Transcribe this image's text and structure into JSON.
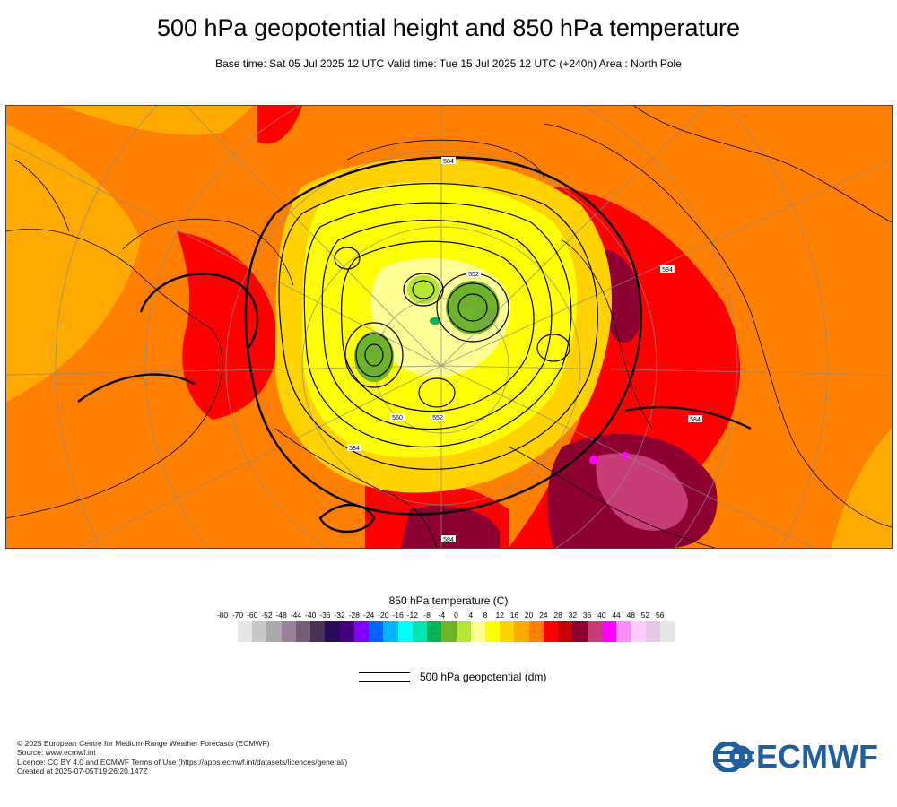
{
  "header": {
    "title": "500 hPa geopotential height and 850 hPa temperature",
    "subtitle": "Base time: Sat 05 Jul 2025 12 UTC Valid time: Tue 15 Jul 2025 12 UTC (+240h) Area : North Pole"
  },
  "map": {
    "contour_labels": [
      "584",
      "584",
      "584",
      "584",
      "584",
      "552",
      "552",
      "560"
    ],
    "colors": {
      "land_outline": "#000000",
      "grid": "#8a8a8a"
    }
  },
  "temperature_legend": {
    "title": "850 hPa temperature (C)",
    "ticks": [
      "-80",
      "-70",
      "-60",
      "-52",
      "-48",
      "-44",
      "-40",
      "-36",
      "-32",
      "-28",
      "-24",
      "-20",
      "-16",
      "-12",
      "-8",
      "-4",
      "0",
      "4",
      "8",
      "12",
      "16",
      "20",
      "24",
      "28",
      "32",
      "36",
      "40",
      "44",
      "48",
      "52",
      "56"
    ],
    "colors": [
      "#e6e6e6",
      "#c8c8c8",
      "#aaaaaa",
      "#9c7f9c",
      "#765f76",
      "#4a3155",
      "#2a0a5a",
      "#46007d",
      "#8200ff",
      "#0064ff",
      "#00b4ff",
      "#00ffff",
      "#00e6b4",
      "#00b45a",
      "#6eb428",
      "#b4e632",
      "#ffff96",
      "#ffff00",
      "#ffd200",
      "#ffaa00",
      "#ff8000",
      "#ff0000",
      "#c80000",
      "#8c0032",
      "#c83c78",
      "#ff00ff",
      "#ff8cff",
      "#ffc8ff",
      "#e6c8e6",
      "#e6e6e6"
    ]
  },
  "geopotential_legend": {
    "label": "500 hPa geopotential (dm)"
  },
  "footer": {
    "lines": [
      "© 2025 European Centre for Medium-Range Weather Forecasts (ECMWF)",
      "Source: www.ecmwf.int",
      "Licence: CC BY 4.0 and ECMWF Terms of Use (https://apps.ecmwf.int/datasets/licences/general/)",
      "Created at 2025-07-05T19:26:20.147Z"
    ]
  },
  "logo": {
    "text": "ECMWF",
    "color": "#1f5fa0"
  }
}
